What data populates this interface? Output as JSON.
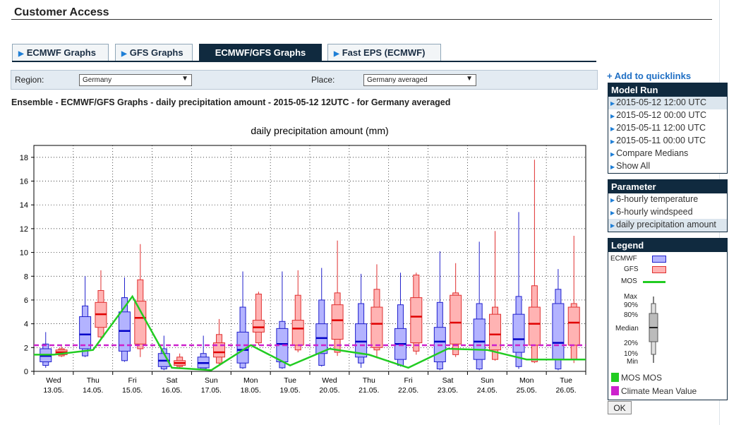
{
  "page": {
    "title": "Customer Access"
  },
  "tabs": [
    {
      "label": "ECMWF Graphs",
      "active": false
    },
    {
      "label": "GFS Graphs",
      "active": false
    },
    {
      "label": "ECMWF/GFS Graphs",
      "active": true
    },
    {
      "label": "Fast EPS (ECMWF)",
      "active": false
    }
  ],
  "filters": {
    "region_label": "Region:",
    "region_value": "Germany",
    "place_label": "Place:",
    "place_value": "Germany averaged"
  },
  "heading": "Ensemble - ECMWF/GFS Graphs - daily precipitation amount - 2015-05-12 12UTC - for Germany averaged",
  "sidebar": {
    "quicklinks": "+ Add to quicklinks",
    "model_run": {
      "title": "Model Run",
      "items": [
        {
          "label": "2015-05-12 12:00 UTC",
          "selected": true
        },
        {
          "label": "2015-05-12 00:00 UTC",
          "selected": false
        },
        {
          "label": "2015-05-11 12:00 UTC",
          "selected": false
        },
        {
          "label": "2015-05-11 00:00 UTC",
          "selected": false
        },
        {
          "label": "Compare Medians",
          "selected": false
        },
        {
          "label": "Show All",
          "selected": false
        }
      ]
    },
    "parameter": {
      "title": "Parameter",
      "items": [
        {
          "label": "6-hourly temperature",
          "selected": false
        },
        {
          "label": "6-hourly windspeed",
          "selected": false
        },
        {
          "label": "daily precipitation amount",
          "selected": true
        }
      ]
    },
    "legend": {
      "title": "Legend",
      "ecmwf": "ECMWF",
      "gfs": "GFS",
      "mos": "MOS",
      "max": "Max",
      "p90": "90%",
      "p80": "80%",
      "median": "Median",
      "p20": "20%",
      "p10": "10%",
      "min": "Min",
      "mos_key": "MOS MOS",
      "climate_key": "Climate Mean Value"
    },
    "ok_label": "OK"
  },
  "colors": {
    "ecmwf_fill": "#b3b3ff",
    "ecmwf_stroke": "#2020cc",
    "ecmwf_median": "#0000c8",
    "gfs_fill": "#ffb3b3",
    "gfs_stroke": "#e03030",
    "gfs_median": "#e00000",
    "mos": "#22cc22",
    "climate": "#cc22cc",
    "nav": "#102a3f",
    "accent": "#1f7fd6"
  },
  "chart_data": {
    "type": "boxplot",
    "title": "daily precipitation amount (mm)",
    "ylim": [
      0,
      19
    ],
    "yticks": [
      0,
      2,
      4,
      6,
      8,
      10,
      12,
      14,
      16,
      18
    ],
    "grid": true,
    "categories": [
      {
        "day": "Wed",
        "date": "13.05."
      },
      {
        "day": "Thu",
        "date": "14.05."
      },
      {
        "day": "Fri",
        "date": "15.05."
      },
      {
        "day": "Sat",
        "date": "16.05."
      },
      {
        "day": "Sun",
        "date": "17.05."
      },
      {
        "day": "Mon",
        "date": "18.05."
      },
      {
        "day": "Tue",
        "date": "19.05."
      },
      {
        "day": "Wed",
        "date": "20.05."
      },
      {
        "day": "Thu",
        "date": "21.05."
      },
      {
        "day": "Fri",
        "date": "22.05."
      },
      {
        "day": "Sat",
        "date": "23.05."
      },
      {
        "day": "Sun",
        "date": "24.05."
      },
      {
        "day": "Mon",
        "date": "25.05."
      },
      {
        "day": "Tue",
        "date": "26.05."
      }
    ],
    "series": [
      {
        "name": "ECMWF",
        "boxes": [
          {
            "min": 0.3,
            "p10": 0.5,
            "p20": 0.8,
            "median": 1.3,
            "p80": 1.9,
            "p90": 2.3,
            "max": 3.3
          },
          {
            "min": 1.2,
            "p10": 1.3,
            "p20": 1.9,
            "median": 3.1,
            "p80": 4.6,
            "p90": 5.5,
            "max": 8.0
          },
          {
            "min": 0.8,
            "p10": 0.9,
            "p20": 1.7,
            "median": 3.4,
            "p80": 5.0,
            "p90": 6.2,
            "max": 7.9
          },
          {
            "min": 0.1,
            "p10": 0.2,
            "p20": 0.4,
            "median": 0.9,
            "p80": 1.5,
            "p90": 1.9,
            "max": 3.0
          },
          {
            "min": 0.1,
            "p10": 0.2,
            "p20": 0.3,
            "median": 0.7,
            "p80": 1.2,
            "p90": 1.5,
            "max": 3.0
          },
          {
            "min": 0.2,
            "p10": 0.3,
            "p20": 0.7,
            "median": 1.8,
            "p80": 3.3,
            "p90": 5.4,
            "max": 8.4
          },
          {
            "min": 0.2,
            "p10": 0.3,
            "p20": 0.8,
            "median": 2.3,
            "p80": 3.6,
            "p90": 4.2,
            "max": 8.4
          },
          {
            "min": 0.4,
            "p10": 0.5,
            "p20": 1.5,
            "median": 2.8,
            "p80": 4.0,
            "p90": 6.0,
            "max": 8.7
          },
          {
            "min": 0.3,
            "p10": 0.7,
            "p20": 1.2,
            "median": 2.5,
            "p80": 4.0,
            "p90": 5.7,
            "max": 8.2
          },
          {
            "min": 0.4,
            "p10": 0.5,
            "p20": 1.0,
            "median": 2.3,
            "p80": 3.6,
            "p90": 5.6,
            "max": 8.3
          },
          {
            "min": 0.1,
            "p10": 0.2,
            "p20": 0.8,
            "median": 2.5,
            "p80": 3.7,
            "p90": 5.8,
            "max": 10.1
          },
          {
            "min": 0.1,
            "p10": 0.2,
            "p20": 1.0,
            "median": 2.5,
            "p80": 4.4,
            "p90": 5.7,
            "max": 10.9
          },
          {
            "min": 0.2,
            "p10": 0.4,
            "p20": 1.6,
            "median": 2.7,
            "p80": 4.8,
            "p90": 6.3,
            "max": 13.4
          },
          {
            "min": 0.1,
            "p10": 0.2,
            "p20": 1.0,
            "median": 2.4,
            "p80": 5.7,
            "p90": 6.9,
            "max": 8.6
          }
        ]
      },
      {
        "name": "GFS",
        "boxes": [
          {
            "min": 1.2,
            "p10": 1.3,
            "p20": 1.4,
            "median": 1.6,
            "p80": 1.8,
            "p90": 1.9,
            "max": 2.1
          },
          {
            "min": 2.7,
            "p10": 2.9,
            "p20": 3.7,
            "median": 4.8,
            "p80": 5.8,
            "p90": 6.8,
            "max": 8.5
          },
          {
            "min": 1.2,
            "p10": 1.9,
            "p20": 2.3,
            "median": 4.5,
            "p80": 5.9,
            "p90": 7.7,
            "max": 10.7
          },
          {
            "min": 0.3,
            "p10": 0.4,
            "p20": 0.5,
            "median": 0.7,
            "p80": 0.9,
            "p90": 1.2,
            "max": 1.5
          },
          {
            "min": 0.6,
            "p10": 0.7,
            "p20": 1.2,
            "median": 1.6,
            "p80": 2.4,
            "p90": 3.1,
            "max": 4.4
          },
          {
            "min": 2.2,
            "p10": 2.4,
            "p20": 3.3,
            "median": 3.7,
            "p80": 4.3,
            "p90": 6.5,
            "max": 6.7
          },
          {
            "min": 1.6,
            "p10": 1.8,
            "p20": 2.2,
            "median": 3.6,
            "p80": 4.3,
            "p90": 6.4,
            "max": 8.5
          },
          {
            "min": 1.3,
            "p10": 1.6,
            "p20": 2.7,
            "median": 4.3,
            "p80": 5.6,
            "p90": 6.6,
            "max": 11.0
          },
          {
            "min": 1.1,
            "p10": 1.8,
            "p20": 2.0,
            "median": 4.0,
            "p80": 5.4,
            "p90": 6.9,
            "max": 9.0
          },
          {
            "min": 1.4,
            "p10": 1.7,
            "p20": 2.4,
            "median": 4.6,
            "p80": 6.2,
            "p90": 8.1,
            "max": 8.3
          },
          {
            "min": 1.2,
            "p10": 1.4,
            "p20": 2.3,
            "median": 4.1,
            "p80": 6.4,
            "p90": 6.6,
            "max": 9.1
          },
          {
            "min": 0.9,
            "p10": 1.0,
            "p20": 1.8,
            "median": 3.1,
            "p80": 4.8,
            "p90": 5.4,
            "max": 11.8
          },
          {
            "min": 0.7,
            "p10": 0.8,
            "p20": 2.2,
            "median": 4.0,
            "p80": 5.4,
            "p90": 7.2,
            "max": 17.8
          },
          {
            "min": 0.7,
            "p10": 1.0,
            "p20": 2.2,
            "median": 4.1,
            "p80": 5.4,
            "p90": 5.7,
            "max": 11.4
          }
        ]
      },
      {
        "name": "MOS",
        "values": [
          1.4,
          1.8,
          6.3,
          0.3,
          0.1,
          2.2,
          0.5,
          1.9,
          1.4,
          0.3,
          1.9,
          1.8,
          1.0,
          1.0
        ]
      },
      {
        "name": "Climate Mean Value",
        "value": 2.2
      }
    ]
  }
}
